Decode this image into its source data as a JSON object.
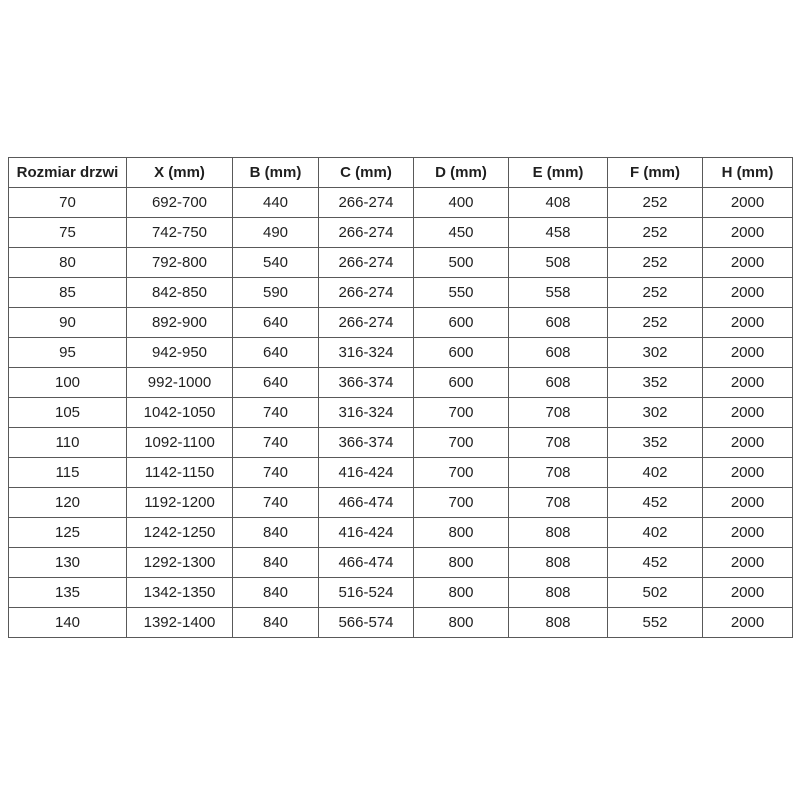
{
  "colors": {
    "background": "#ffffff",
    "border": "#595959",
    "text": "#1f1f1f"
  },
  "chart_data": {
    "type": "table",
    "title": "",
    "columns": [
      "Rozmiar drzwi",
      "X (mm)",
      "B (mm)",
      "C (mm)",
      "D (mm)",
      "E (mm)",
      "F (mm)",
      "H (mm)"
    ],
    "rows": [
      [
        "70",
        "692-700",
        "440",
        "266-274",
        "400",
        "408",
        "252",
        "2000"
      ],
      [
        "75",
        "742-750",
        "490",
        "266-274",
        "450",
        "458",
        "252",
        "2000"
      ],
      [
        "80",
        "792-800",
        "540",
        "266-274",
        "500",
        "508",
        "252",
        "2000"
      ],
      [
        "85",
        "842-850",
        "590",
        "266-274",
        "550",
        "558",
        "252",
        "2000"
      ],
      [
        "90",
        "892-900",
        "640",
        "266-274",
        "600",
        "608",
        "252",
        "2000"
      ],
      [
        "95",
        "942-950",
        "640",
        "316-324",
        "600",
        "608",
        "302",
        "2000"
      ],
      [
        "100",
        "992-1000",
        "640",
        "366-374",
        "600",
        "608",
        "352",
        "2000"
      ],
      [
        "105",
        "1042-1050",
        "740",
        "316-324",
        "700",
        "708",
        "302",
        "2000"
      ],
      [
        "110",
        "1092-1100",
        "740",
        "366-374",
        "700",
        "708",
        "352",
        "2000"
      ],
      [
        "115",
        "1142-1150",
        "740",
        "416-424",
        "700",
        "708",
        "402",
        "2000"
      ],
      [
        "120",
        "1192-1200",
        "740",
        "466-474",
        "700",
        "708",
        "452",
        "2000"
      ],
      [
        "125",
        "1242-1250",
        "840",
        "416-424",
        "800",
        "808",
        "402",
        "2000"
      ],
      [
        "130",
        "1292-1300",
        "840",
        "466-474",
        "800",
        "808",
        "452",
        "2000"
      ],
      [
        "135",
        "1342-1350",
        "840",
        "516-524",
        "800",
        "808",
        "502",
        "2000"
      ],
      [
        "140",
        "1392-1400",
        "840",
        "566-574",
        "800",
        "808",
        "552",
        "2000"
      ]
    ],
    "layout_hints": {
      "grid": "all-borders",
      "header_bold": true,
      "text_align": "center"
    }
  }
}
